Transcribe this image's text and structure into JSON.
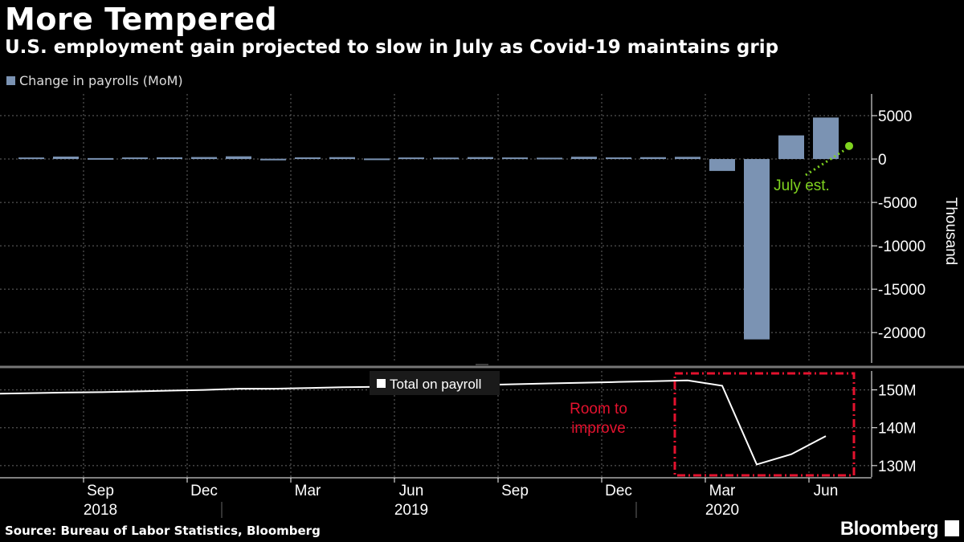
{
  "title": "More Tempered",
  "subtitle": "U.S. employment gain projected to slow in July as Covid-19 maintains grip",
  "source": "Source: Bureau of Labor Statistics, Bloomberg",
  "brand": "Bloomberg",
  "colors": {
    "bar": "#7b93b3",
    "estimate": "#7fd31f",
    "highlight": "#e3122e",
    "line": "#ffffff"
  },
  "chart_data": [
    {
      "type": "bar",
      "legend": "Change in payrolls (MoM)",
      "ylabel": "Thousand",
      "ylim": [
        -23500,
        7500
      ],
      "yticks": [
        5000,
        0,
        -5000,
        -10000,
        -15000,
        -20000
      ],
      "ytick_labels": [
        "5000",
        "0",
        "-5000",
        "-10000",
        "-15000",
        "-20000"
      ],
      "categories": [
        "2018-07",
        "2018-08",
        "2018-09",
        "2018-10",
        "2018-11",
        "2018-12",
        "2019-01",
        "2019-02",
        "2019-03",
        "2019-04",
        "2019-05",
        "2019-06",
        "2019-07",
        "2019-08",
        "2019-09",
        "2019-10",
        "2019-11",
        "2019-12",
        "2020-01",
        "2020-02",
        "2020-03",
        "2020-04",
        "2020-05",
        "2020-06"
      ],
      "values": [
        178,
        282,
        108,
        180,
        196,
        227,
        312,
        33,
        189,
        216,
        62,
        178,
        166,
        219,
        180,
        152,
        261,
        184,
        214,
        251,
        -1373,
        -20787,
        2725,
        4781
      ],
      "estimate": {
        "label": "July est.",
        "category": "2020-07",
        "value": 1500
      }
    },
    {
      "type": "line",
      "legend": "Total on payroll",
      "ylim": [
        127000,
        155000
      ],
      "yticks": [
        150000,
        140000,
        130000
      ],
      "ytick_labels": [
        "150M",
        "140M",
        "130M"
      ],
      "categories": [
        "2018-07",
        "2018-08",
        "2018-09",
        "2018-10",
        "2018-11",
        "2018-12",
        "2019-01",
        "2019-02",
        "2019-03",
        "2019-04",
        "2019-05",
        "2019-06",
        "2019-07",
        "2019-08",
        "2019-09",
        "2019-10",
        "2019-11",
        "2019-12",
        "2020-01",
        "2020-02",
        "2020-03",
        "2020-04",
        "2020-05",
        "2020-06"
      ],
      "values": [
        149000,
        149300,
        149400,
        149600,
        149800,
        150000,
        150300,
        150300,
        150500,
        150700,
        150800,
        151000,
        151100,
        151300,
        151500,
        151700,
        151900,
        152100,
        152300,
        152500,
        151100,
        130300,
        133000,
        137800
      ],
      "annotation": "Room to\nimprove",
      "annotation_lines": [
        "Room to",
        "improve"
      ]
    }
  ],
  "x_axis": {
    "month_labels": [
      "Sep",
      "Dec",
      "Mar",
      "Jun",
      "Sep",
      "Dec",
      "Mar",
      "Jun"
    ],
    "month_categories": [
      "2018-09",
      "2018-12",
      "2019-03",
      "2019-06",
      "2019-09",
      "2019-12",
      "2020-03",
      "2020-06"
    ],
    "year_labels": [
      "2018",
      "2019",
      "2020"
    ],
    "year_categories": [
      "2018-09",
      "2019-06",
      "2020-03"
    ]
  }
}
